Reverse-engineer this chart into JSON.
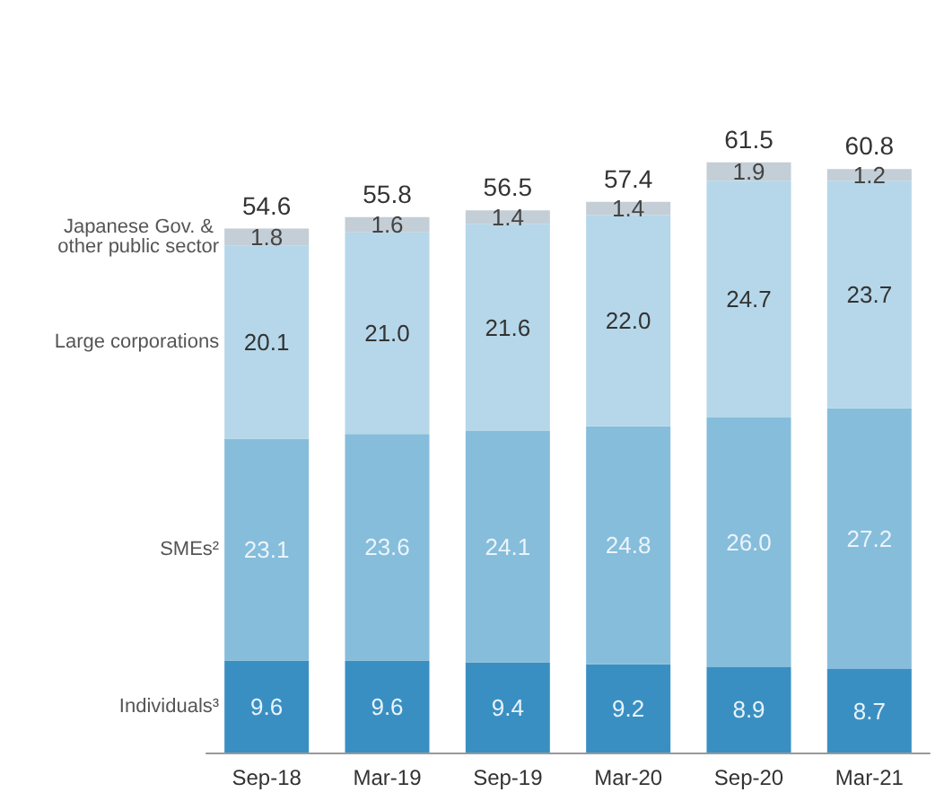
{
  "chart_data": {
    "type": "bar",
    "stacked": true,
    "data_labels": true,
    "categories": [
      "Sep-18",
      "Mar-19",
      "Sep-19",
      "Mar-20",
      "Sep-20",
      "Mar-21"
    ],
    "series": [
      {
        "name": "Individuals³",
        "color": "#3a8fc2",
        "values": [
          9.6,
          9.6,
          9.4,
          9.2,
          8.9,
          8.7
        ]
      },
      {
        "name": "SMEs²",
        "color": "#86bddb",
        "values": [
          23.1,
          23.6,
          24.1,
          24.8,
          26.0,
          27.2
        ],
        "value_labels": [
          "23.1",
          "23.6",
          "24.1",
          "24.8",
          "26.0",
          "27.2"
        ]
      },
      {
        "name": "Large corporations",
        "color": "#b5d7e9",
        "values": [
          20.1,
          21.0,
          21.6,
          22.0,
          24.7,
          23.7
        ],
        "value_labels": [
          "20.1",
          "21.0",
          "21.6",
          "22.0",
          "24.7",
          "23.7"
        ]
      },
      {
        "name": "Japanese Gov. & other public sector",
        "color": "#c3ced6",
        "values": [
          1.8,
          1.6,
          1.4,
          1.4,
          1.9,
          1.2
        ]
      }
    ],
    "totals": [
      "54.6",
      "55.8",
      "56.5",
      "57.4",
      "61.5",
      "60.8"
    ]
  }
}
